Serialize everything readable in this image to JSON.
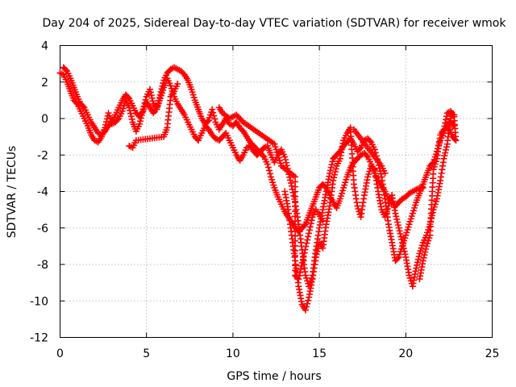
{
  "chart_data": {
    "type": "scatter",
    "title": "Day 204 of 2025, Sidereal Day-to-day VTEC variation (SDTVAR) for receiver wmok",
    "xlabel": "GPS time / hours",
    "ylabel": "SDTVAR / TECUs",
    "xlim": [
      0,
      25
    ],
    "ylim": [
      -12,
      4
    ],
    "xticks": [
      0,
      5,
      10,
      15,
      20,
      25
    ],
    "yticks": [
      -12,
      -10,
      -8,
      -6,
      -4,
      -2,
      0,
      2,
      4
    ],
    "grid": true,
    "marker": "+",
    "color": "#ff0000",
    "series": [
      {
        "points": [
          [
            0.0,
            2.5
          ],
          [
            0.2,
            2.4
          ],
          [
            0.4,
            2.0
          ],
          [
            0.6,
            1.5
          ],
          [
            0.8,
            1.0
          ],
          [
            1.0,
            0.8
          ],
          [
            1.2,
            0.4
          ],
          [
            1.4,
            0.0
          ],
          [
            1.6,
            -0.4
          ],
          [
            1.8,
            -0.9
          ],
          [
            2.0,
            -1.2
          ],
          [
            2.2,
            -1.3
          ],
          [
            2.4,
            -1.0
          ],
          [
            2.6,
            -0.5
          ],
          [
            2.8,
            0.3
          ],
          [
            3.0,
            -0.3
          ],
          [
            3.2,
            -0.2
          ],
          [
            3.4,
            0.0
          ],
          [
            3.6,
            0.4
          ],
          [
            3.8,
            1.0
          ],
          [
            4.0,
            0.6
          ],
          [
            4.2,
            -0.2
          ],
          [
            4.4,
            -0.7
          ],
          [
            4.6,
            -0.3
          ],
          [
            4.8,
            0.5
          ],
          [
            5.0,
            1.2
          ],
          [
            5.2,
            1.6
          ],
          [
            5.4,
            0.8
          ],
          [
            5.6,
            0.5
          ],
          [
            5.8,
            1.3
          ],
          [
            6.0,
            2.1
          ],
          [
            6.2,
            2.5
          ],
          [
            6.4,
            2.7
          ],
          [
            6.6,
            2.8
          ],
          [
            6.8,
            2.7
          ],
          [
            7.0,
            2.6
          ],
          [
            7.2,
            2.4
          ],
          [
            7.4,
            2.1
          ],
          [
            7.6,
            1.6
          ],
          [
            7.8,
            1.0
          ],
          [
            8.0,
            0.5
          ],
          [
            8.2,
            0.0
          ],
          [
            8.4,
            -0.3
          ],
          [
            8.6,
            -0.1
          ],
          [
            8.8,
            0.5
          ],
          [
            9.0,
            -0.2
          ],
          [
            9.2,
            -0.6
          ],
          [
            9.4,
            -0.3
          ],
          [
            9.6,
            0.0
          ],
          [
            9.8,
            -0.3
          ],
          [
            10.0,
            -0.4
          ],
          [
            10.2,
            -0.2
          ],
          [
            10.4,
            -0.5
          ],
          [
            10.6,
            -0.7
          ],
          [
            10.8,
            -1.0
          ],
          [
            11.0,
            -1.3
          ],
          [
            11.2,
            -1.5
          ],
          [
            11.4,
            -1.7
          ],
          [
            11.6,
            -1.9
          ],
          [
            11.8,
            -2.1
          ],
          [
            12.0,
            -2.5
          ],
          [
            12.2,
            -3.2
          ],
          [
            12.4,
            -3.8
          ],
          [
            12.6,
            -4.3
          ],
          [
            12.8,
            -4.7
          ],
          [
            13.0,
            -5.1
          ],
          [
            13.2,
            -5.4
          ],
          [
            13.4,
            -5.7
          ],
          [
            13.6,
            -6.0
          ],
          [
            13.8,
            -6.2
          ],
          [
            14.0,
            -6.0
          ],
          [
            14.2,
            -5.8
          ],
          [
            14.4,
            -5.3
          ],
          [
            14.6,
            -4.8
          ],
          [
            14.8,
            -4.3
          ],
          [
            15.0,
            -3.8
          ],
          [
            15.2,
            -3.6
          ],
          [
            15.4,
            -3.8
          ],
          [
            15.6,
            -4.2
          ],
          [
            15.8,
            -4.6
          ],
          [
            16.0,
            -4.9
          ],
          [
            16.2,
            -4.4
          ],
          [
            16.4,
            -3.8
          ],
          [
            16.6,
            -3.2
          ],
          [
            16.8,
            -2.7
          ],
          [
            17.0,
            -2.4
          ],
          [
            17.2,
            -2.2
          ],
          [
            17.4,
            -2.0
          ],
          [
            17.6,
            -1.9
          ],
          [
            17.8,
            -2.1
          ],
          [
            18.0,
            -2.5
          ],
          [
            18.2,
            -3.0
          ],
          [
            18.4,
            -3.4
          ],
          [
            18.6,
            -3.7
          ],
          [
            18.8,
            -4.0
          ],
          [
            19.0,
            -4.4
          ],
          [
            19.2,
            -4.6
          ],
          [
            19.4,
            -4.8
          ],
          [
            19.6,
            -4.6
          ],
          [
            19.8,
            -4.4
          ],
          [
            20.0,
            -4.3
          ],
          [
            20.2,
            -4.1
          ],
          [
            20.4,
            -4.0
          ],
          [
            20.6,
            -3.9
          ],
          [
            20.8,
            -3.8
          ],
          [
            21.0,
            -3.8
          ]
        ]
      },
      {
        "points": [
          [
            0.2,
            2.8
          ],
          [
            0.4,
            2.6
          ],
          [
            0.6,
            2.2
          ],
          [
            0.8,
            1.7
          ],
          [
            1.0,
            1.2
          ],
          [
            1.2,
            0.8
          ],
          [
            1.4,
            0.6
          ],
          [
            1.6,
            0.2
          ],
          [
            1.8,
            -0.2
          ],
          [
            2.0,
            -0.5
          ],
          [
            2.2,
            -0.8
          ],
          [
            2.4,
            -0.9
          ],
          [
            2.6,
            -0.7
          ],
          [
            2.8,
            -0.4
          ],
          [
            3.0,
            -0.2
          ],
          [
            3.2,
            0.2
          ],
          [
            3.4,
            0.6
          ],
          [
            3.6,
            1.0
          ],
          [
            3.8,
            1.3
          ],
          [
            4.0,
            1.1
          ],
          [
            4.2,
            0.7
          ],
          [
            4.4,
            0.3
          ],
          [
            4.6,
            0.1
          ],
          [
            4.8,
            0.4
          ],
          [
            5.0,
            0.9
          ],
          [
            5.2,
            0.6
          ],
          [
            5.4,
            0.3
          ],
          [
            5.6,
            0.6
          ],
          [
            5.8,
            1.1
          ],
          [
            6.0,
            1.7
          ],
          [
            6.2,
            2.2
          ],
          [
            6.4,
            1.8
          ],
          [
            6.6,
            1.2
          ],
          [
            6.8,
            0.8
          ],
          [
            7.0,
            0.5
          ],
          [
            7.2,
            0.2
          ],
          [
            7.4,
            -0.2
          ],
          [
            7.6,
            -0.6
          ],
          [
            7.8,
            -1.0
          ],
          [
            8.0,
            -1.2
          ],
          [
            8.2,
            -0.8
          ],
          [
            8.4,
            -0.4
          ],
          [
            8.6,
            -0.6
          ],
          [
            8.8,
            -0.9
          ],
          [
            9.0,
            -1.1
          ],
          [
            9.2,
            -1.2
          ],
          [
            9.4,
            -1.0
          ],
          [
            9.6,
            -0.8
          ],
          [
            9.8,
            -1.2
          ],
          [
            10.0,
            -1.6
          ],
          [
            10.2,
            -2.0
          ],
          [
            10.4,
            -2.3
          ],
          [
            10.6,
            -2.0
          ],
          [
            10.8,
            -1.6
          ],
          [
            11.0,
            -1.5
          ],
          [
            11.2,
            -1.8
          ],
          [
            11.4,
            -2.0
          ],
          [
            11.6,
            -1.8
          ],
          [
            11.8,
            -1.6
          ],
          [
            12.0,
            -1.5
          ],
          [
            12.2,
            -2.0
          ],
          [
            12.4,
            -2.4
          ],
          [
            12.6,
            -2.0
          ],
          [
            12.8,
            -1.7
          ],
          [
            13.0,
            -2.1
          ],
          [
            13.2,
            -2.9
          ],
          [
            13.4,
            -3.7
          ],
          [
            13.6,
            -4.6
          ],
          [
            13.8,
            -5.8
          ],
          [
            14.0,
            -7.2
          ],
          [
            14.2,
            -8.6
          ],
          [
            14.4,
            -9.2
          ],
          [
            14.6,
            -8.6
          ],
          [
            14.8,
            -7.2
          ],
          [
            15.0,
            -6.0
          ],
          [
            15.2,
            -5.0
          ],
          [
            15.4,
            -4.0
          ],
          [
            15.6,
            -3.0
          ],
          [
            15.8,
            -2.2
          ],
          [
            16.0,
            -2.0
          ],
          [
            16.2,
            -1.8
          ],
          [
            16.4,
            -1.5
          ],
          [
            16.6,
            -1.3
          ],
          [
            16.8,
            -1.1
          ],
          [
            17.0,
            -1.4
          ],
          [
            17.2,
            -1.8
          ],
          [
            17.4,
            -1.6
          ],
          [
            17.6,
            -1.2
          ],
          [
            17.8,
            -1.1
          ],
          [
            18.0,
            -1.3
          ],
          [
            18.2,
            -1.7
          ],
          [
            18.4,
            -2.4
          ],
          [
            18.6,
            -3.2
          ],
          [
            18.8,
            -4.4
          ],
          [
            19.0,
            -5.8
          ],
          [
            19.2,
            -6.8
          ],
          [
            19.4,
            -7.8
          ],
          [
            19.6,
            -7.6
          ],
          [
            19.8,
            -7.0
          ],
          [
            20.0,
            -6.4
          ],
          [
            20.2,
            -5.8
          ],
          [
            20.4,
            -5.2
          ],
          [
            20.6,
            -4.6
          ],
          [
            20.8,
            -4.1
          ],
          [
            21.0,
            -3.6
          ],
          [
            21.2,
            -3.1
          ],
          [
            21.4,
            -2.6
          ],
          [
            21.6,
            -2.4
          ],
          [
            21.8,
            -1.8
          ],
          [
            22.0,
            -1.2
          ],
          [
            22.2,
            -0.8
          ],
          [
            22.4,
            -0.3
          ],
          [
            22.6,
            -0.2
          ],
          [
            22.8,
            -0.4
          ]
        ]
      },
      {
        "points": [
          [
            13.0,
            -4.0
          ],
          [
            13.2,
            -5.0
          ],
          [
            13.4,
            -6.4
          ],
          [
            13.6,
            -7.8
          ],
          [
            13.8,
            -9.2
          ],
          [
            14.0,
            -10.2
          ],
          [
            14.2,
            -10.5
          ],
          [
            14.4,
            -9.8
          ],
          [
            14.6,
            -8.8
          ],
          [
            14.8,
            -7.6
          ],
          [
            15.0,
            -6.8
          ],
          [
            15.2,
            -7.1
          ],
          [
            15.4,
            -5.8
          ],
          [
            15.6,
            -4.8
          ],
          [
            15.8,
            -3.4
          ],
          [
            16.0,
            -2.6
          ],
          [
            16.2,
            -2.2
          ],
          [
            16.4,
            -1.2
          ],
          [
            16.6,
            -0.8
          ],
          [
            16.8,
            -0.5
          ],
          [
            17.0,
            -3.6
          ],
          [
            17.2,
            -4.8
          ],
          [
            17.4,
            -5.4
          ],
          [
            17.6,
            -4.2
          ],
          [
            17.8,
            -3.2
          ],
          [
            18.0,
            -2.6
          ],
          [
            18.2,
            -2.8
          ],
          [
            18.4,
            -4.0
          ],
          [
            18.6,
            -5.0
          ],
          [
            18.8,
            -5.4
          ],
          [
            19.0,
            -4.8
          ],
          [
            19.2,
            -4.2
          ],
          [
            19.4,
            -5.2
          ],
          [
            19.6,
            -6.0
          ],
          [
            19.8,
            -6.8
          ],
          [
            20.0,
            -7.6
          ],
          [
            20.2,
            -8.6
          ],
          [
            20.4,
            -9.2
          ],
          [
            20.6,
            -8.2
          ],
          [
            20.8,
            -7.4
          ],
          [
            21.0,
            -6.8
          ],
          [
            21.2,
            -6.4
          ],
          [
            21.4,
            -5.8
          ],
          [
            21.6,
            -5.0
          ],
          [
            21.8,
            -4.4
          ],
          [
            22.0,
            -3.4
          ],
          [
            22.2,
            -2.2
          ],
          [
            22.4,
            -1.4
          ],
          [
            22.6,
            0.2
          ],
          [
            22.8,
            0.2
          ]
        ]
      },
      {
        "points": [
          [
            20.8,
            -8.8
          ],
          [
            21.0,
            -7.8
          ],
          [
            21.2,
            -7.0
          ],
          [
            21.4,
            -6.4
          ],
          [
            21.6,
            -2.8
          ],
          [
            21.8,
            -2.2
          ],
          [
            22.0,
            -0.9
          ],
          [
            22.2,
            -0.6
          ],
          [
            22.4,
            0.3
          ],
          [
            22.6,
            0.4
          ],
          [
            22.8,
            0.1
          ],
          [
            22.9,
            -1.2
          ],
          [
            22.7,
            -1.0
          ],
          [
            22.5,
            -0.5
          ],
          [
            4.0,
            -1.5
          ],
          [
            4.2,
            -1.6
          ],
          [
            4.4,
            -1.2
          ],
          [
            6.0,
            -1.0
          ],
          [
            6.2,
            -0.5
          ],
          [
            6.4,
            1.2
          ],
          [
            6.6,
            1.5
          ],
          [
            6.8,
            1.9
          ],
          [
            9.2,
            0.6
          ],
          [
            9.4,
            0.3
          ],
          [
            9.8,
            0.0
          ],
          [
            10.2,
            0.2
          ],
          [
            10.6,
            -0.2
          ],
          [
            12.4,
            -1.4
          ],
          [
            12.8,
            -2.6
          ],
          [
            13.6,
            -3.2
          ],
          [
            13.6,
            -8.6
          ],
          [
            13.8,
            -8.8
          ],
          [
            14.6,
            -5.4
          ],
          [
            14.8,
            -5.0
          ],
          [
            15.2,
            -5.6
          ],
          [
            17.0,
            -0.6
          ],
          [
            18.6,
            -2.6
          ],
          [
            18.8,
            -3.0
          ]
        ]
      }
    ]
  }
}
